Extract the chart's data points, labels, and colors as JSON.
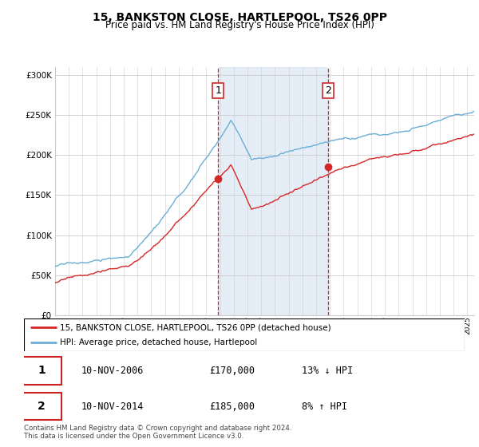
{
  "title": "15, BANKSTON CLOSE, HARTLEPOOL, TS26 0PP",
  "subtitle": "Price paid vs. HM Land Registry's House Price Index (HPI)",
  "legend_line1": "15, BANKSTON CLOSE, HARTLEPOOL, TS26 0PP (detached house)",
  "legend_line2": "HPI: Average price, detached house, Hartlepool",
  "table_rows": [
    {
      "num": "1",
      "date": "10-NOV-2006",
      "price": "£170,000",
      "hpi": "13% ↓ HPI"
    },
    {
      "num": "2",
      "date": "10-NOV-2014",
      "price": "£185,000",
      "hpi": "8% ↑ HPI"
    }
  ],
  "footer": "Contains HM Land Registry data © Crown copyright and database right 2024.\nThis data is licensed under the Open Government Licence v3.0.",
  "sale1_year": 2006.86,
  "sale1_price": 170000,
  "sale2_year": 2014.86,
  "sale2_price": 185000,
  "hpi_color": "#6baed6",
  "price_color": "#d62728",
  "sale_marker_color": "#d62728",
  "shade_color": "#c6dbef",
  "vline_color": "#d62728",
  "ylim": [
    0,
    310000
  ],
  "yticks": [
    0,
    50000,
    100000,
    150000,
    200000,
    250000,
    300000
  ],
  "background_color": "#ffffff",
  "grid_color": "#cccccc",
  "xmin": 1995,
  "xmax": 2025.5
}
